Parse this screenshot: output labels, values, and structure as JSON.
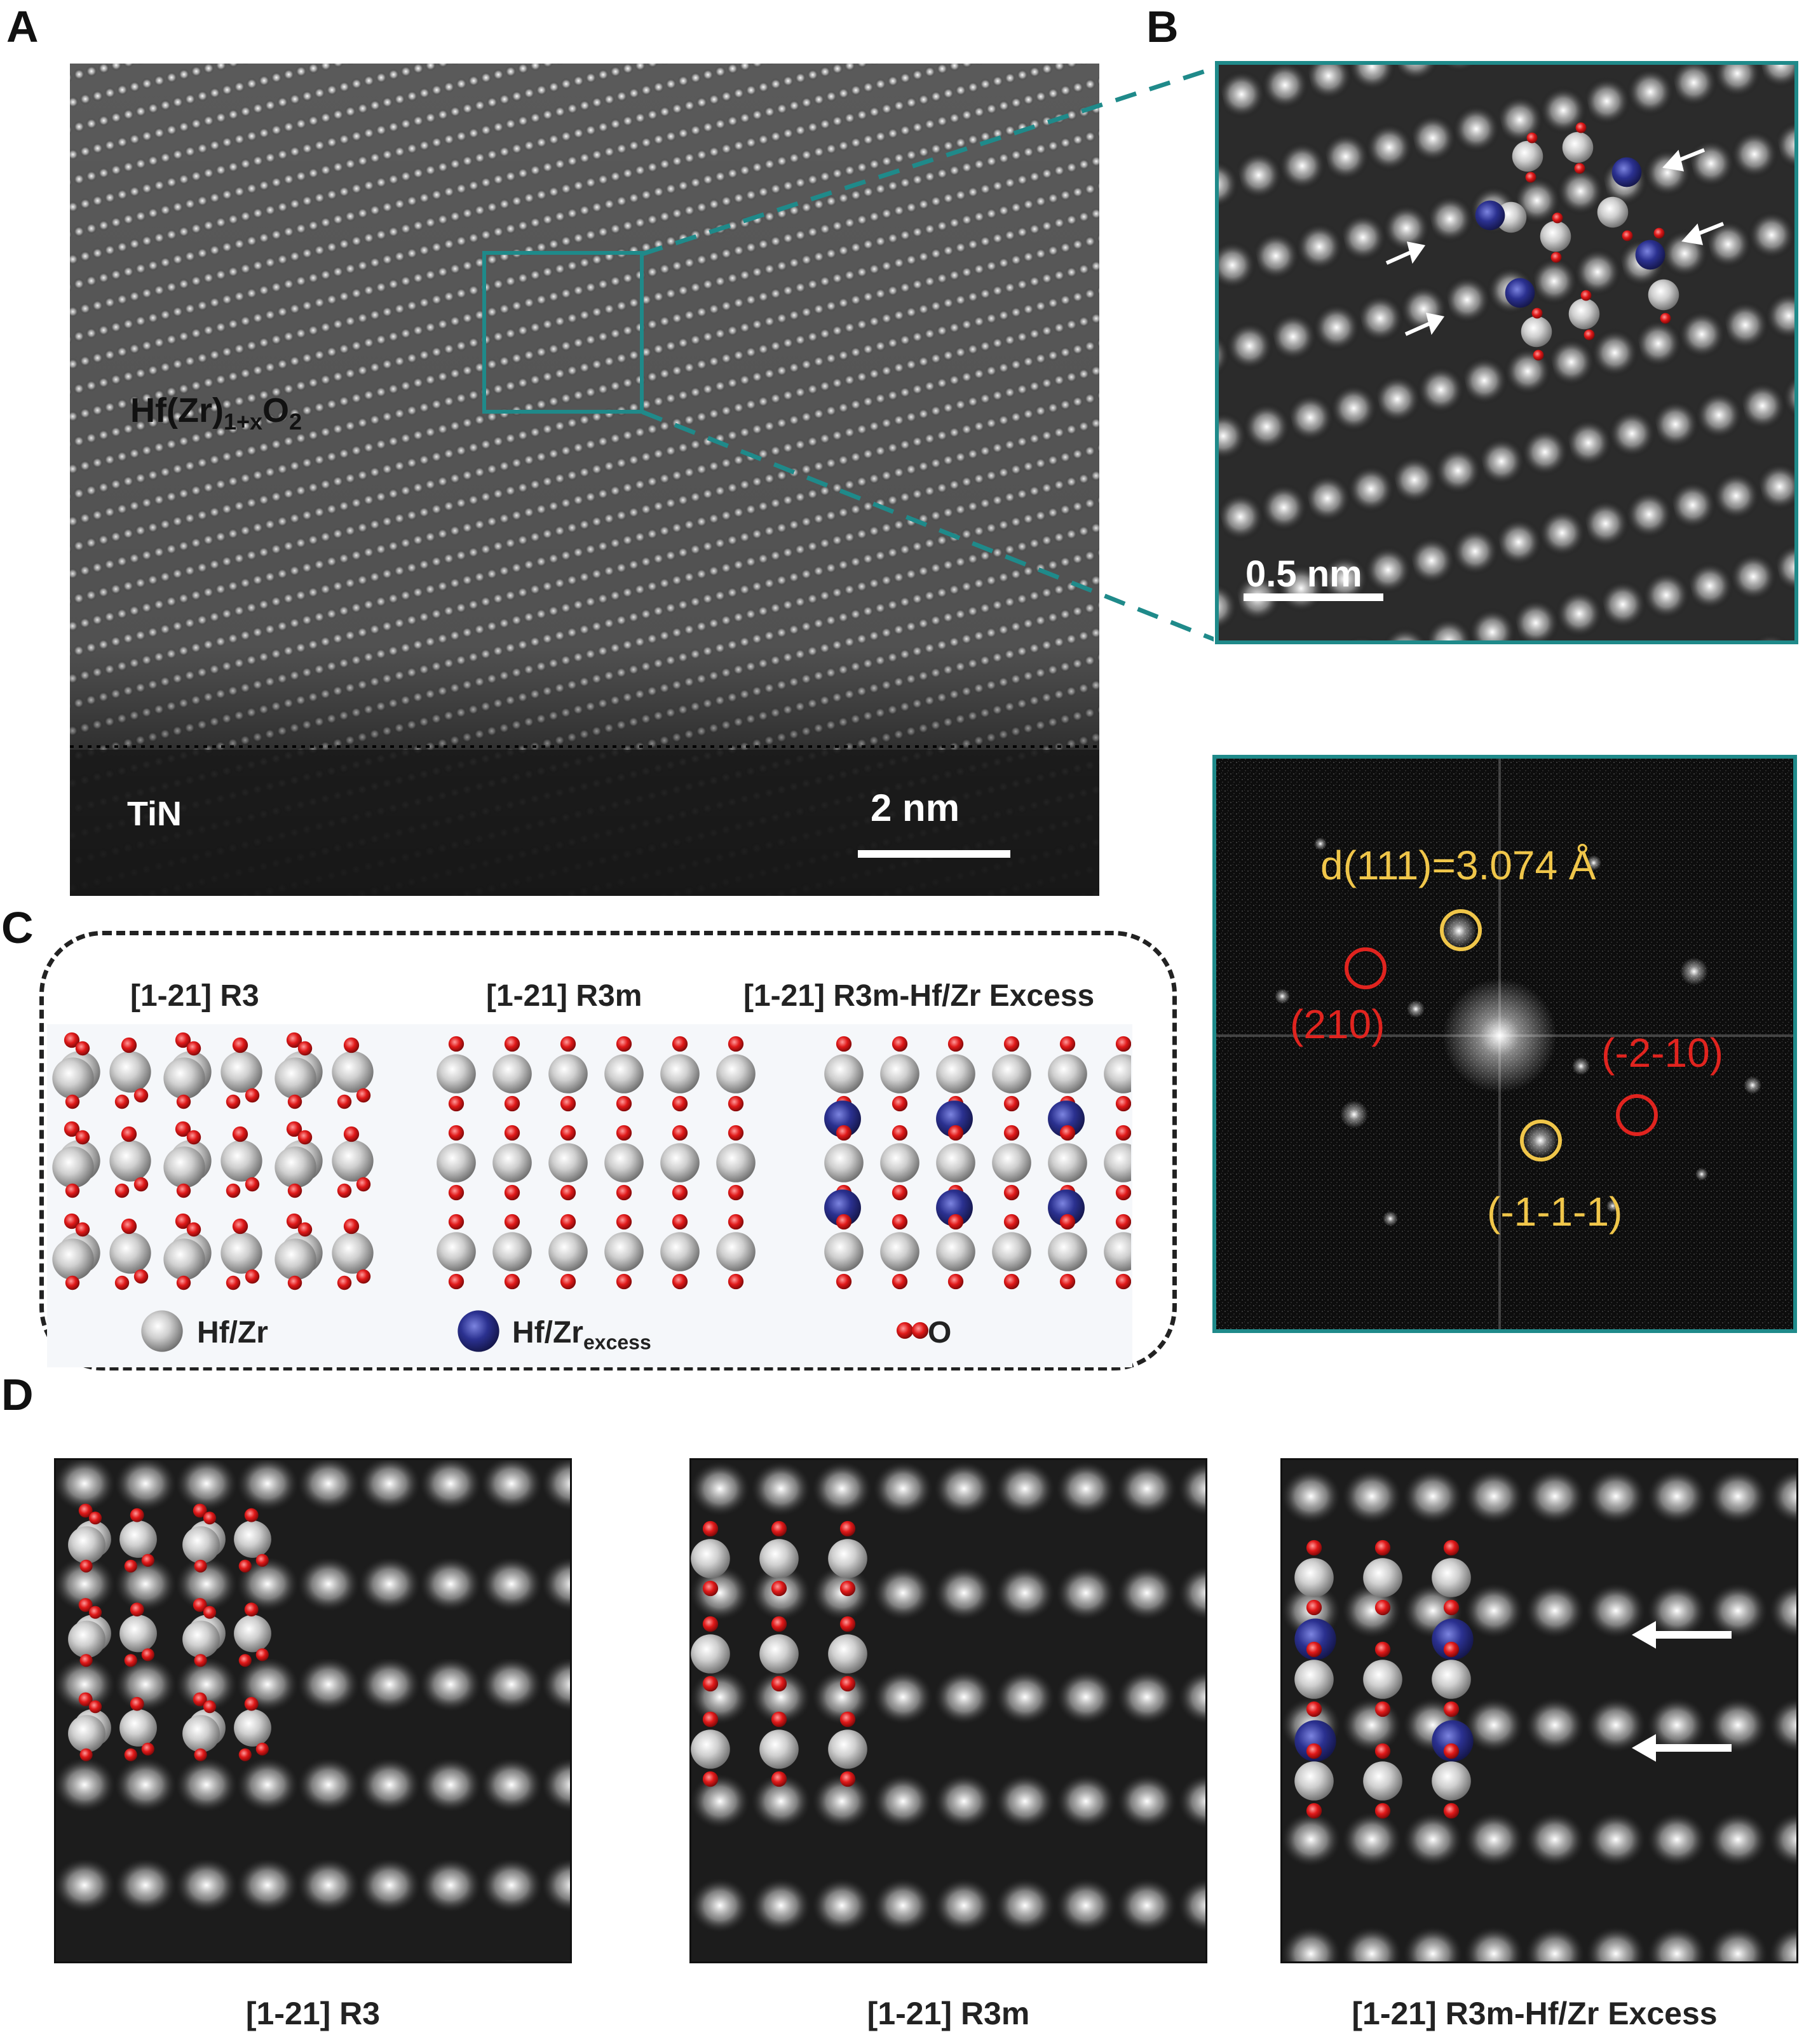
{
  "panels": {
    "a": {
      "letter": "A",
      "material": "Hf(Zr)",
      "material_sub": "1+x",
      "material_o": "O",
      "material_o_sub": "2",
      "substrate": "TiN",
      "scale": "2 nm"
    },
    "b": {
      "letter": "B",
      "scale": "0.5 nm",
      "fft_d_spacing": "d(111)=3.074 Å",
      "fft_spot_1": "(210)",
      "fft_spot_2": "(-2-10)",
      "fft_spot_3": "(-1-1-1)"
    },
    "c": {
      "letter": "C",
      "titles": [
        "[1-21] R3",
        "[1-21] R3m",
        "[1-21] R3m-Hf/Zr Excess"
      ],
      "legend_hfzr": "Hf/Zr",
      "legend_excess": "Hf/Zr",
      "legend_excess_sub": "excess",
      "legend_o": "O"
    },
    "d": {
      "letter": "D",
      "captions": [
        "[1-21] R3",
        "[1-21] R3m",
        "[1-21] R3m-Hf/Zr Excess"
      ]
    }
  },
  "colors": {
    "teal": "#1f8a8a",
    "oxygen": "#e01919",
    "hfzr": "#c9c9c9",
    "excess": "#2a2f8f",
    "fft_yellow": "#f0c64a",
    "fft_red": "#e0241f"
  }
}
